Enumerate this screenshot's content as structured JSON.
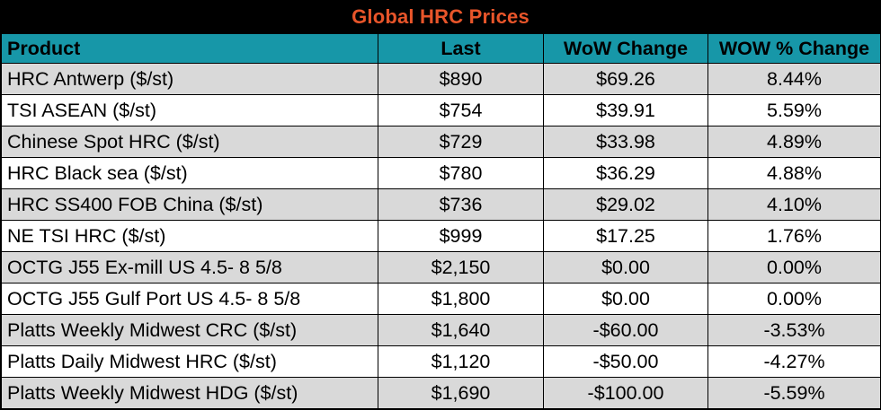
{
  "table": {
    "title": "Global HRC Prices",
    "columns": [
      "Product",
      "Last",
      "WoW Change",
      "WOW % Change"
    ],
    "rows": [
      {
        "product": "HRC Antwerp ($/st)",
        "last": "$890",
        "wow_change": "$69.26",
        "wow_pct": "8.44%"
      },
      {
        "product": "TSI ASEAN ($/st)",
        "last": "$754",
        "wow_change": "$39.91",
        "wow_pct": "5.59%"
      },
      {
        "product": "Chinese Spot HRC ($/st)",
        "last": "$729",
        "wow_change": "$33.98",
        "wow_pct": "4.89%"
      },
      {
        "product": "HRC Black sea ($/st)",
        "last": "$780",
        "wow_change": "$36.29",
        "wow_pct": "4.88%"
      },
      {
        "product": "HRC SS400 FOB China ($/st)",
        "last": "$736",
        "wow_change": "$29.02",
        "wow_pct": "4.10%"
      },
      {
        "product": "NE TSI HRC ($/st)",
        "last": "$999",
        "wow_change": "$17.25",
        "wow_pct": "1.76%"
      },
      {
        "product": "OCTG J55 Ex-mill US 4.5- 8 5/8",
        "last": "$2,150",
        "wow_change": "$0.00",
        "wow_pct": "0.00%"
      },
      {
        "product": "OCTG J55 Gulf Port US 4.5- 8 5/8",
        "last": "$1,800",
        "wow_change": "$0.00",
        "wow_pct": "0.00%"
      },
      {
        "product": "Platts Weekly Midwest CRC ($/st)",
        "last": "$1,640",
        "wow_change": "-$60.00",
        "wow_pct": "-3.53%"
      },
      {
        "product": "Platts Daily Midwest HRC ($/st)",
        "last": "$1,120",
        "wow_change": "-$50.00",
        "wow_pct": "-4.27%"
      },
      {
        "product": "Platts Weekly Midwest HDG ($/st)",
        "last": "$1,690",
        "wow_change": "-$100.00",
        "wow_pct": "-5.59%"
      }
    ]
  },
  "colors": {
    "title_background": "#000000",
    "title_text": "#e8552a",
    "header_background": "#1797a8",
    "shaded_row": "#d9d9d9",
    "plain_row": "#ffffff"
  }
}
